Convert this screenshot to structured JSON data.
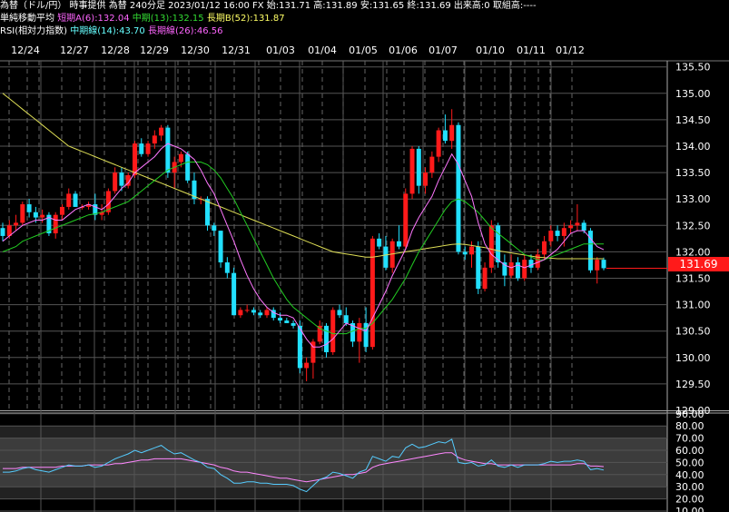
{
  "header": {
    "line1": "為替（ドル/円） 時事提供 為替 240分足 2023/01/12 16:00 FX 始:131.71 高:131.89 安:131.65 終:131.69 出来高:0 取組高:----",
    "ma_label": "単純移動平均",
    "ma_short": "短期A(6):132.04",
    "ma_mid": "中期(13):132.15",
    "ma_long": "長期B(52):131.87",
    "rsi_label": "RSI(相対力指数)",
    "rsi_mid": "中期線(14):43.70",
    "rsi_long": "長期線(26):46.56"
  },
  "last_price": "131.69",
  "colors": {
    "up": "#ff1a1a",
    "down": "#22e0ff",
    "ma_short": "#ff77ff",
    "ma_mid": "#22cc22",
    "ma_long": "#dddd55",
    "rsi14": "#55ccff",
    "rsi26": "#ff88ff",
    "grid": "#3a3a3a",
    "band": "#3c3c3c"
  },
  "chart_data": [
    {
      "type": "candlestick",
      "title": "",
      "x_labels": [
        "12/24",
        "12/27",
        "12/28",
        "12/29",
        "12/30",
        "12/31",
        "01/03",
        "01/04",
        "01/05",
        "01/06",
        "01/07",
        "01/10",
        "01/11",
        "01/12"
      ],
      "y_ticks": [
        129.0,
        129.5,
        130.0,
        130.5,
        131.0,
        131.5,
        132.0,
        132.5,
        133.0,
        133.5,
        134.0,
        134.5,
        135.0,
        135.5
      ],
      "ylim": [
        129.0,
        135.55
      ],
      "candles": [
        [
          132.45,
          132.55,
          132.2,
          132.3
        ],
        [
          132.3,
          132.6,
          132.25,
          132.5
        ],
        [
          132.5,
          132.7,
          132.4,
          132.55
        ],
        [
          132.55,
          132.95,
          132.5,
          132.9
        ],
        [
          132.9,
          133.0,
          132.65,
          132.75
        ],
        [
          132.75,
          132.85,
          132.55,
          132.65
        ],
        [
          132.65,
          132.8,
          132.55,
          132.7
        ],
        [
          132.7,
          132.75,
          132.3,
          132.35
        ],
        [
          132.35,
          132.75,
          132.25,
          132.7
        ],
        [
          132.7,
          132.9,
          132.6,
          132.85
        ],
        [
          132.85,
          133.2,
          132.8,
          133.1
        ],
        [
          133.1,
          133.15,
          132.85,
          132.85
        ],
        [
          132.85,
          132.9,
          132.8,
          132.85
        ],
        [
          132.85,
          132.95,
          132.8,
          132.9
        ],
        [
          132.9,
          133.1,
          132.6,
          132.7
        ],
        [
          132.7,
          132.9,
          132.6,
          132.75
        ],
        [
          132.75,
          133.2,
          132.7,
          133.15
        ],
        [
          133.15,
          133.6,
          133.1,
          133.5
        ],
        [
          133.5,
          133.6,
          133.15,
          133.25
        ],
        [
          133.25,
          133.5,
          133.2,
          133.45
        ],
        [
          133.45,
          134.1,
          133.4,
          134.05
        ],
        [
          134.05,
          134.15,
          133.8,
          133.85
        ],
        [
          133.85,
          134.1,
          133.8,
          134.05
        ],
        [
          134.05,
          134.3,
          133.95,
          134.2
        ],
        [
          134.2,
          134.4,
          134.1,
          134.35
        ],
        [
          134.35,
          134.4,
          133.4,
          133.5
        ],
        [
          133.5,
          133.8,
          133.2,
          133.7
        ],
        [
          133.7,
          133.9,
          133.6,
          133.85
        ],
        [
          133.85,
          133.9,
          133.3,
          133.35
        ],
        [
          133.35,
          133.5,
          132.9,
          133.0
        ],
        [
          133.0,
          133.05,
          132.9,
          133.0
        ],
        [
          133.0,
          133.05,
          132.4,
          132.5
        ],
        [
          132.5,
          132.55,
          132.3,
          132.4
        ],
        [
          132.4,
          132.4,
          131.7,
          131.8
        ],
        [
          131.8,
          131.9,
          131.5,
          131.6
        ],
        [
          131.6,
          131.7,
          130.8,
          130.8
        ],
        [
          130.8,
          130.95,
          130.75,
          130.9
        ],
        [
          130.9,
          131.0,
          130.85,
          130.9
        ],
        [
          130.9,
          130.95,
          130.8,
          130.85
        ],
        [
          130.85,
          130.9,
          130.75,
          130.8
        ],
        [
          130.8,
          130.95,
          130.75,
          130.9
        ],
        [
          130.9,
          130.95,
          130.7,
          130.75
        ],
        [
          130.75,
          130.85,
          130.65,
          130.7
        ],
        [
          130.7,
          130.75,
          130.65,
          130.65
        ],
        [
          130.65,
          130.7,
          130.55,
          130.6
        ],
        [
          130.6,
          130.7,
          129.7,
          129.8
        ],
        [
          129.8,
          130.0,
          129.55,
          129.9
        ],
        [
          129.9,
          130.35,
          129.6,
          130.3
        ],
        [
          130.3,
          130.7,
          130.25,
          130.6
        ],
        [
          130.6,
          130.65,
          130.0,
          130.1
        ],
        [
          130.1,
          130.95,
          130.05,
          130.9
        ],
        [
          130.9,
          131.0,
          130.75,
          130.8
        ],
        [
          130.8,
          130.95,
          130.6,
          130.65
        ],
        [
          130.65,
          130.7,
          130.2,
          130.3
        ],
        [
          130.3,
          130.75,
          129.9,
          130.65
        ],
        [
          130.65,
          130.95,
          130.1,
          130.2
        ],
        [
          130.2,
          132.3,
          130.15,
          132.25
        ],
        [
          132.25,
          132.35,
          132.05,
          132.1
        ],
        [
          132.1,
          132.3,
          131.65,
          131.7
        ],
        [
          131.7,
          132.25,
          131.6,
          132.2
        ],
        [
          132.2,
          132.5,
          132.05,
          132.1
        ],
        [
          132.1,
          133.2,
          132.05,
          133.1
        ],
        [
          133.1,
          134.0,
          133.0,
          133.95
        ],
        [
          133.95,
          134.0,
          133.1,
          133.25
        ],
        [
          133.25,
          133.6,
          133.1,
          133.5
        ],
        [
          133.5,
          133.9,
          133.4,
          133.8
        ],
        [
          133.8,
          134.35,
          133.7,
          134.3
        ],
        [
          134.3,
          134.6,
          134.05,
          134.1
        ],
        [
          134.1,
          134.7,
          133.95,
          134.4
        ],
        [
          134.4,
          134.45,
          131.95,
          132.0
        ],
        [
          132.0,
          132.1,
          131.85,
          131.95
        ],
        [
          131.95,
          132.2,
          131.7,
          132.1
        ],
        [
          132.1,
          132.2,
          131.2,
          131.3
        ],
        [
          131.3,
          131.8,
          131.25,
          131.7
        ],
        [
          131.7,
          132.6,
          131.6,
          132.5
        ],
        [
          132.5,
          132.55,
          131.7,
          131.8
        ],
        [
          131.8,
          131.95,
          131.35,
          131.55
        ],
        [
          131.55,
          131.95,
          131.5,
          131.8
        ],
        [
          131.8,
          131.9,
          131.45,
          131.5
        ],
        [
          131.5,
          131.95,
          131.45,
          131.85
        ],
        [
          131.85,
          131.95,
          131.6,
          131.7
        ],
        [
          131.7,
          132.05,
          131.65,
          131.95
        ],
        [
          131.95,
          132.3,
          131.85,
          132.2
        ],
        [
          132.2,
          132.5,
          132.1,
          132.4
        ],
        [
          132.4,
          132.5,
          132.2,
          132.3
        ],
        [
          132.3,
          132.55,
          132.1,
          132.45
        ],
        [
          132.45,
          132.6,
          132.35,
          132.5
        ],
        [
          132.5,
          132.9,
          132.4,
          132.55
        ],
        [
          132.55,
          132.6,
          132.35,
          132.4
        ],
        [
          132.4,
          132.45,
          131.6,
          131.65
        ],
        [
          131.65,
          131.9,
          131.4,
          131.85
        ],
        [
          131.85,
          131.89,
          131.65,
          131.69
        ]
      ],
      "ma": {
        "short_6": [
          132.2,
          132.3,
          132.4,
          132.5,
          132.55,
          132.6,
          132.6,
          132.65,
          132.6,
          132.6,
          132.7,
          132.8,
          132.85,
          132.9,
          132.85,
          132.8,
          132.9,
          133.05,
          133.2,
          133.3,
          133.5,
          133.6,
          133.7,
          133.8,
          133.95,
          134.05,
          134.0,
          133.95,
          133.85,
          133.75,
          133.55,
          133.3,
          133.1,
          132.8,
          132.5,
          132.2,
          131.85,
          131.55,
          131.3,
          131.1,
          130.95,
          130.85,
          130.8,
          130.8,
          130.75,
          130.55,
          130.35,
          130.2,
          130.2,
          130.25,
          130.35,
          130.5,
          130.65,
          130.6,
          130.55,
          130.5,
          130.75,
          131.0,
          131.25,
          131.55,
          131.8,
          132.05,
          132.4,
          132.65,
          132.85,
          133.05,
          133.35,
          133.6,
          133.85,
          133.65,
          133.35,
          133.05,
          132.55,
          132.15,
          131.95,
          131.85,
          131.75,
          131.7,
          131.75,
          131.7,
          131.75,
          131.8,
          131.85,
          131.95,
          132.05,
          132.2,
          132.35,
          132.4,
          132.4,
          132.25,
          132.1,
          132.04
        ],
        "mid_13": [
          132.0,
          132.05,
          132.1,
          132.2,
          132.25,
          132.3,
          132.35,
          132.4,
          132.45,
          132.5,
          132.55,
          132.6,
          132.65,
          132.7,
          132.72,
          132.75,
          132.8,
          132.85,
          132.9,
          132.95,
          133.05,
          133.15,
          133.25,
          133.35,
          133.45,
          133.55,
          133.6,
          133.65,
          133.7,
          133.7,
          133.7,
          133.65,
          133.55,
          133.4,
          133.2,
          133.0,
          132.75,
          132.5,
          132.25,
          132.0,
          131.75,
          131.5,
          131.3,
          131.1,
          130.95,
          130.85,
          130.75,
          130.65,
          130.55,
          130.5,
          130.45,
          130.45,
          130.45,
          130.5,
          130.55,
          130.55,
          130.65,
          130.8,
          130.95,
          131.1,
          131.3,
          131.5,
          131.75,
          132.0,
          132.2,
          132.4,
          132.6,
          132.8,
          132.95,
          133.0,
          132.95,
          132.85,
          132.75,
          132.6,
          132.45,
          132.35,
          132.25,
          132.15,
          132.05,
          131.95,
          131.9,
          131.85,
          131.85,
          131.9,
          131.95,
          132.0,
          132.05,
          132.1,
          132.15,
          132.15,
          132.15,
          132.15
        ],
        "long_52": [
          135.0,
          134.9,
          134.8,
          134.7,
          134.6,
          134.5,
          134.4,
          134.3,
          134.2,
          134.1,
          134.0,
          133.95,
          133.9,
          133.85,
          133.8,
          133.75,
          133.7,
          133.65,
          133.6,
          133.55,
          133.5,
          133.45,
          133.4,
          133.35,
          133.3,
          133.25,
          133.2,
          133.15,
          133.1,
          133.05,
          133.0,
          132.95,
          132.9,
          132.85,
          132.8,
          132.75,
          132.7,
          132.65,
          132.6,
          132.55,
          132.5,
          132.45,
          132.4,
          132.35,
          132.3,
          132.25,
          132.2,
          132.15,
          132.1,
          132.05,
          132.0,
          131.98,
          131.96,
          131.94,
          131.92,
          131.9,
          131.9,
          131.92,
          131.94,
          131.96,
          131.98,
          132.0,
          132.02,
          132.04,
          132.06,
          132.08,
          132.1,
          132.12,
          132.14,
          132.15,
          132.14,
          132.12,
          132.1,
          132.08,
          132.05,
          132.02,
          132.0,
          131.98,
          131.96,
          131.94,
          131.92,
          131.9,
          131.89,
          131.88,
          131.87,
          131.87,
          131.87,
          131.87,
          131.87,
          131.87,
          131.87,
          131.87
        ]
      }
    },
    {
      "type": "line",
      "title": "",
      "y_ticks": [
        10.0,
        20.0,
        30.0,
        40.0,
        50.0,
        60.0,
        70.0,
        80.0,
        90.0
      ],
      "ylim": [
        10.0,
        92.0
      ],
      "series": [
        {
          "name": "中期線(14)",
          "values": [
            42,
            42,
            43,
            45,
            46,
            44,
            43,
            42,
            44,
            46,
            48,
            47,
            47,
            48,
            46,
            47,
            50,
            53,
            55,
            57,
            60,
            58,
            60,
            62,
            64,
            60,
            57,
            58,
            55,
            52,
            50,
            46,
            45,
            40,
            37,
            33,
            33,
            34,
            34,
            33,
            33,
            32,
            32,
            32,
            31,
            28,
            26,
            31,
            36,
            38,
            42,
            41,
            39,
            37,
            42,
            44,
            55,
            53,
            51,
            55,
            54,
            62,
            65,
            62,
            63,
            65,
            67,
            66,
            69,
            50,
            49,
            50,
            47,
            48,
            52,
            47,
            46,
            48,
            46,
            48,
            48,
            48,
            49,
            51,
            50,
            51,
            51,
            52,
            51,
            44,
            45,
            43.7
          ]
        },
        {
          "name": "長期線(26)",
          "values": [
            45,
            45,
            45,
            46,
            46,
            46,
            46,
            46,
            46,
            47,
            47,
            47,
            47,
            48,
            48,
            48,
            48,
            49,
            49,
            50,
            51,
            52,
            52,
            53,
            53,
            53,
            53,
            53,
            52,
            51,
            50,
            49,
            48,
            46,
            45,
            43,
            42,
            42,
            41,
            40,
            39,
            38,
            37,
            37,
            36,
            35,
            34,
            35,
            36,
            37,
            38,
            39,
            40,
            40,
            41,
            42,
            46,
            48,
            49,
            50,
            51,
            52,
            53,
            54,
            55,
            56,
            57,
            58,
            58,
            54,
            52,
            51,
            50,
            49,
            49,
            48,
            48,
            48,
            48,
            48,
            48,
            48,
            48,
            48,
            48,
            48,
            48,
            49,
            49,
            47,
            47,
            46.56
          ]
        }
      ]
    }
  ]
}
